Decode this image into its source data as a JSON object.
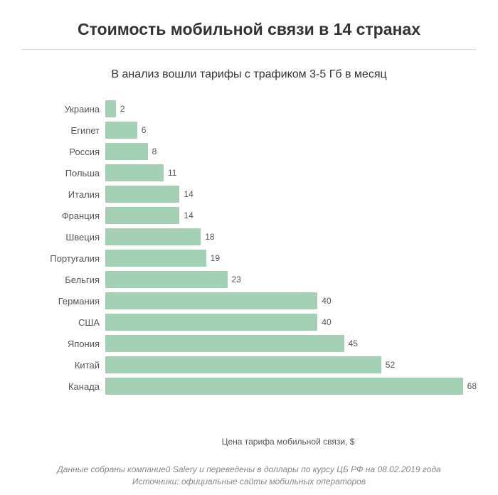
{
  "title": "Стоимость мобильной связи в 14 странах",
  "subtitle": "В анализ вошли тарифы с трафиком 3-5 Гб в месяц",
  "chart": {
    "type": "bar",
    "orientation": "horizontal",
    "x_axis_label": "Цена тарифа мобильной связи, $",
    "x_max": 70,
    "bar_color": "#a3d0b4",
    "bar_height_ratio": 0.78,
    "background_color": "#ffffff",
    "divider_color": "#dcdcdc",
    "label_fontsize": 13,
    "value_fontsize": 12,
    "title_fontsize": 23,
    "subtitle_fontsize": 16,
    "label_text_color": "#555555",
    "title_text_color": "#333333",
    "data": [
      {
        "category": "Украина",
        "value": 2
      },
      {
        "category": "Египет",
        "value": 6
      },
      {
        "category": "Россия",
        "value": 8
      },
      {
        "category": "Польша",
        "value": 11
      },
      {
        "category": "Италия",
        "value": 14
      },
      {
        "category": "Франция",
        "value": 14
      },
      {
        "category": "Швеция",
        "value": 18
      },
      {
        "category": "Португалия",
        "value": 19
      },
      {
        "category": "Бельгия",
        "value": 23
      },
      {
        "category": "Германия",
        "value": 40
      },
      {
        "category": "США",
        "value": 40
      },
      {
        "category": "Япония",
        "value": 45
      },
      {
        "category": "Китай",
        "value": 52
      },
      {
        "category": "Канада",
        "value": 68
      }
    ]
  },
  "footer": {
    "line1": "Данные собраны компанией Salery и переведены в доллары по курсу ЦБ РФ на 08.02.2019 года",
    "line2": "Источники: официальные сайты мобильных операторов"
  }
}
